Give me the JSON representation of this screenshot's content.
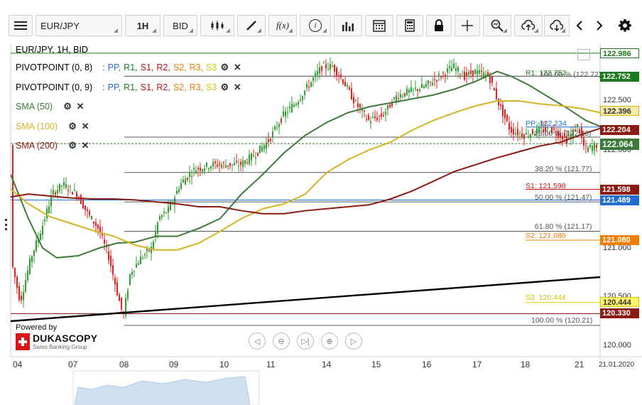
{
  "toolbar": {
    "symbol": "EUR/JPY",
    "timeframe": "1H",
    "side": "BID",
    "fx_label": "f(x)",
    "info_label": "i"
  },
  "chart": {
    "header": "EUR/JPY, 1H, BID",
    "indicators": [
      {
        "name": "PIVOTPOINT (0, 8)",
        "parts": [
          "PP,",
          "R1,",
          "S1,",
          "R2,",
          "S2,",
          "R3,",
          "S3"
        ]
      },
      {
        "name": "PIVOTPOINT (0, 9)",
        "parts": [
          "PP,",
          "R1,",
          "S1,",
          "R2,",
          "S2,",
          "R3,",
          "S3"
        ]
      },
      {
        "name": "SMA (50)"
      },
      {
        "name": "SMA (100)"
      },
      {
        "name": "SMA (200)"
      }
    ],
    "level_labels": {
      "r1": "R1: 122.752",
      "r1_fib": "100.00 % (122.72)",
      "pp": "PP: 122.234",
      "fib236": "23.60 % (122.13)",
      "fib382": "38.20 % (121.77)",
      "s1": "S1: 121.598",
      "fib50": "50.00 % (121.47)",
      "fib618": "61.80 % (121.17)",
      "s2": "S2: 121.080",
      "s3": "S3: 120.444",
      "fib100": "100.00 % (120.21)"
    },
    "price_tags": [
      "122.986",
      "122.752",
      "122.396",
      "122.204",
      "122.064",
      "121.598",
      "121.489",
      "121.080",
      "120.444",
      "120.330"
    ],
    "axis_values": [
      "122.500",
      "122.000",
      "121.000",
      "120.500",
      "120.000"
    ],
    "dates": [
      "04",
      "07",
      "08",
      "09",
      "10",
      "11",
      "14",
      "15",
      "16",
      "17",
      "18",
      "21",
      "21.01.2020"
    ],
    "powered_by": "Powered by",
    "brand": "DUKASCOPY",
    "brand_sub": "Swiss Banking Group"
  },
  "colors": {
    "sma50": "#3d7a3a",
    "sma100": "#d4b425",
    "sma200": "#8b1a12",
    "bull": "#2e9e2e",
    "bear": "#d22",
    "pp": "#1f6fd0",
    "r1": "#1b7a1b",
    "s1": "#c01313",
    "s2": "#f07d00",
    "s3": "#d5c400"
  }
}
